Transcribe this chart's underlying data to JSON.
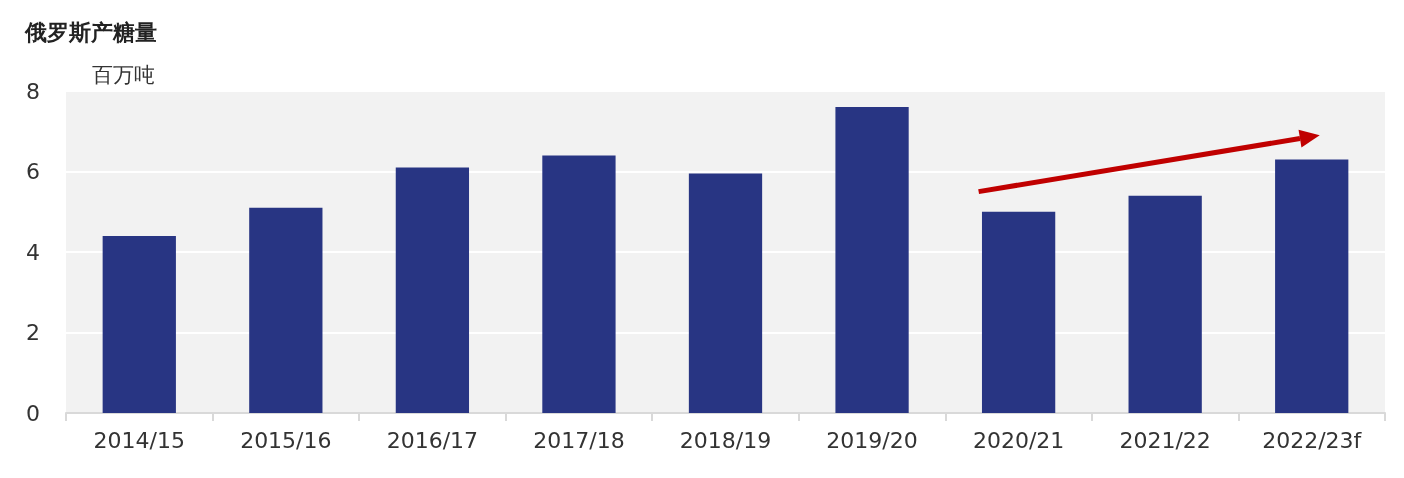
{
  "chart_data": {
    "type": "bar",
    "title": "俄罗斯产糖量",
    "ylabel": "百万吨",
    "categories": [
      "2014/15",
      "2015/16",
      "2016/17",
      "2017/18",
      "2018/19",
      "2019/20",
      "2020/21",
      "2021/22",
      "2022/23f"
    ],
    "values": [
      4.4,
      5.1,
      6.1,
      6.4,
      5.95,
      7.6,
      5.0,
      5.4,
      6.3
    ],
    "color": "#283583",
    "ylim": [
      0,
      8
    ],
    "yticks": [
      0,
      2,
      4,
      6,
      8
    ],
    "grid": "y"
  }
}
